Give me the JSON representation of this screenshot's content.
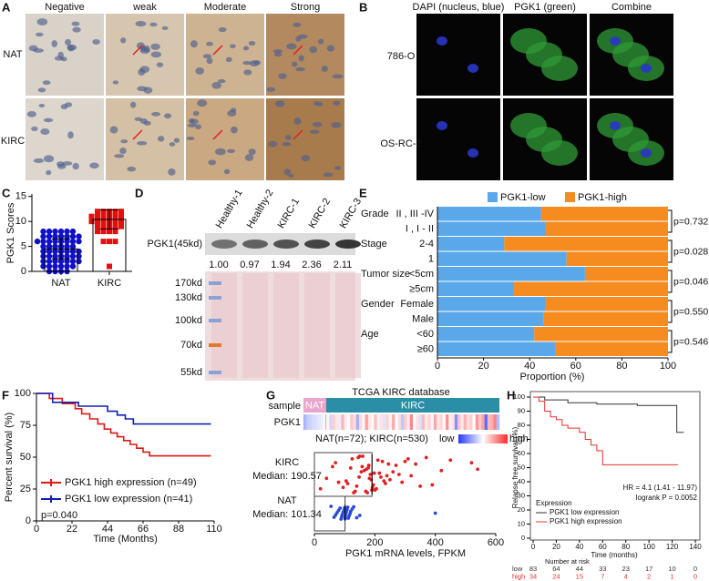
{
  "panels": {
    "A": {
      "letter": "A",
      "columns": [
        "Negative",
        "weak",
        "Moderate",
        "Strong"
      ],
      "rows": [
        "NAT",
        "KIRC"
      ]
    },
    "B": {
      "letter": "B",
      "columns": [
        "DAPI (nucleus, blue)",
        "PGK1 (green)",
        "Combine"
      ],
      "rows": [
        "786-O",
        "OS-RC-2"
      ]
    },
    "D": {
      "letter": "D",
      "lanes": [
        "Healthy-1",
        "Healthy-2",
        "KIRC-1",
        "KIRC-2",
        "KIRC-3"
      ],
      "protein": "PGK1(45kd)",
      "quantification": [
        "1.00",
        "0.97",
        "1.94",
        "2.36",
        "2.11"
      ],
      "markers": [
        "170kd",
        "130kd",
        "100kd",
        "70kd",
        "55kd"
      ]
    }
  },
  "chart_data": [
    {
      "type": "dot",
      "panel": "C",
      "ylabel": "PGK1 Scores",
      "categories": [
        "NAT",
        "KIRC"
      ],
      "colors": [
        "#1010c8",
        "#e01010"
      ],
      "markers": [
        "circle",
        "square"
      ],
      "values": [
        [
          8,
          8,
          8,
          8,
          8,
          8,
          7,
          7,
          7,
          7,
          7,
          7,
          7,
          6,
          6,
          6,
          6,
          6,
          6,
          6,
          6,
          5,
          5,
          5,
          5,
          5,
          5,
          4,
          4,
          4,
          4,
          4,
          4,
          4,
          3,
          3,
          3,
          3,
          3,
          3,
          3,
          2,
          2,
          2,
          2,
          2,
          2,
          2,
          1,
          1,
          1,
          1,
          1,
          1,
          0,
          0,
          0,
          0
        ],
        [
          12,
          12,
          12,
          12,
          12,
          11,
          11,
          11,
          11,
          11,
          11,
          10,
          10,
          10,
          10,
          10,
          10,
          9,
          9,
          9,
          9,
          9,
          8,
          8,
          8,
          8,
          6,
          6,
          6,
          1
        ]
      ],
      "means": [
        4.5,
        10.4
      ],
      "errors": [
        2,
        1.9
      ],
      "ylim": [
        0,
        15.5
      ],
      "yticks": [
        0,
        5,
        10,
        15
      ]
    },
    {
      "type": "stacked-bar",
      "panel": "E",
      "categories": [
        "II , III -IV",
        "I , I - II",
        "2-4",
        "1",
        "<5cm",
        "≥5cm",
        "Female",
        "Male",
        "<60",
        "≥60"
      ],
      "series": [
        {
          "name": "PGK1-low",
          "color": "#5aa8ea",
          "values": [
            45,
            47,
            29,
            56,
            64,
            33,
            47,
            46,
            42,
            51
          ]
        },
        {
          "name": "PGK1-high",
          "color": "#f68b1f",
          "values": [
            55,
            53,
            71,
            44,
            36,
            67,
            53,
            54,
            58,
            49
          ]
        }
      ],
      "groups": [
        {
          "name": "Grade",
          "p": "p=0.732"
        },
        {
          "name": "Stage",
          "p": "p=0.028"
        },
        {
          "name": "Tumor size",
          "p": "p=0.046"
        },
        {
          "name": "Gender",
          "p": "p=0.550"
        },
        {
          "name": "Age",
          "p": "p=0.546"
        }
      ],
      "xlabel": "Proportion (%)",
      "xlim": [
        0,
        100
      ],
      "xticks": [
        0,
        20,
        40,
        60,
        80,
        100
      ]
    },
    {
      "type": "survival",
      "panel": "F",
      "ylabel": "Percent survival (%)",
      "xlabel": "Time (Months)",
      "series": [
        {
          "name": "PGK1 high expression (n=49)",
          "color": "#e01818",
          "x": [
            0,
            8,
            16,
            24,
            28,
            33,
            38,
            42,
            46,
            50,
            54,
            58,
            62,
            66,
            70,
            108
          ],
          "values": [
            100,
            96,
            92,
            88,
            84,
            80,
            76,
            72,
            69,
            66,
            63,
            60,
            57,
            54,
            51,
            51
          ]
        },
        {
          "name": "PGK1 low expression (n=41)",
          "color": "#1020b0",
          "x": [
            0,
            10,
            26,
            44,
            50,
            55,
            60,
            108
          ],
          "values": [
            100,
            93,
            90,
            86,
            83,
            80,
            76,
            76
          ]
        }
      ],
      "annotation": "p=0.040",
      "xlim": [
        0,
        110
      ],
      "xticks": [
        0,
        22,
        44,
        66,
        88,
        110
      ],
      "ylim": [
        0,
        100
      ],
      "yticks": [
        0,
        25,
        50,
        75,
        100
      ]
    },
    {
      "type": "beeswarm",
      "panel": "G",
      "title": "TCGA KIRC database",
      "sample_label": "sample",
      "gene_label": "PGK1",
      "counts_label": "NAT(n=72); KIRC(n=530)",
      "scale_low": "low",
      "scale_high": "high",
      "groups": [
        {
          "name": "NAT",
          "color": "#2a4ad8",
          "band_color": "#e8a6cc",
          "median": 101.34,
          "median_label": "Median: 101.34",
          "values": [
            55,
            65,
            70,
            75,
            80,
            85,
            88,
            90,
            92,
            95,
            98,
            100,
            101,
            102,
            104,
            106,
            108,
            110,
            112,
            115,
            118,
            120,
            125,
            130,
            140,
            150,
            400
          ]
        },
        {
          "name": "KIRC",
          "color": "#e02020",
          "band_color": "#2a8fa6",
          "median": 190.57,
          "median_label": "Median: 190.57",
          "values": [
            160,
            95,
            230,
            185,
            120,
            300,
            175,
            140,
            250,
            198,
            60,
            210,
            135,
            390,
            182,
            155,
            270,
            125,
            190,
            110,
            220,
            165,
            335,
            145,
            205,
            80,
            240,
            172,
            520,
            150,
            192,
            105,
            280,
            178,
            225,
            130,
            350,
            188,
            215,
            158,
            450,
            170,
            195,
            40,
            260,
            180,
            310,
            200,
            235,
            148,
            420,
            245,
            370,
            20,
            290,
            320,
            540,
            70
          ]
        }
      ],
      "xlabel": "PGK1 mRNA levels, FPKM",
      "xlim": [
        0,
        600
      ],
      "xticks": [
        0,
        200,
        400,
        600
      ]
    },
    {
      "type": "survival",
      "panel": "H",
      "ylabel": "Relapse free survival (%)",
      "xlabel": "Time (months)",
      "legend_title": "Expression",
      "series": [
        {
          "name": "PGK1 low expression",
          "color": "#333333",
          "x": [
            0,
            10,
            30,
            55,
            90,
            124,
            130
          ],
          "values": [
            100,
            98,
            96,
            95,
            94,
            75,
            75
          ]
        },
        {
          "name": "PGK1 high expression",
          "color": "#e8302a",
          "x": [
            0,
            5,
            10,
            15,
            20,
            25,
            30,
            40,
            45,
            50,
            55,
            60,
            125
          ],
          "values": [
            100,
            97,
            90,
            86,
            84,
            80,
            78,
            75,
            70,
            66,
            62,
            52,
            52
          ]
        }
      ],
      "annotations": [
        "HR = 4.1 (1.41 - 11.97)",
        "logrank P = 0.0052"
      ],
      "risk_title": "Number at risk",
      "risk": [
        {
          "name": "low",
          "values": [
            83,
            64,
            44,
            33,
            23,
            17,
            10,
            0
          ]
        },
        {
          "name": "high",
          "values": [
            34,
            24,
            15,
            7,
            4,
            2,
            1,
            0
          ]
        }
      ],
      "xlim": [
        0,
        140
      ],
      "xticks": [
        0,
        20,
        40,
        60,
        80,
        100,
        120,
        140
      ],
      "ylim": [
        0,
        100
      ],
      "yticks": [
        0,
        10,
        20,
        30,
        40,
        50,
        60,
        70,
        80,
        90,
        100
      ]
    }
  ]
}
